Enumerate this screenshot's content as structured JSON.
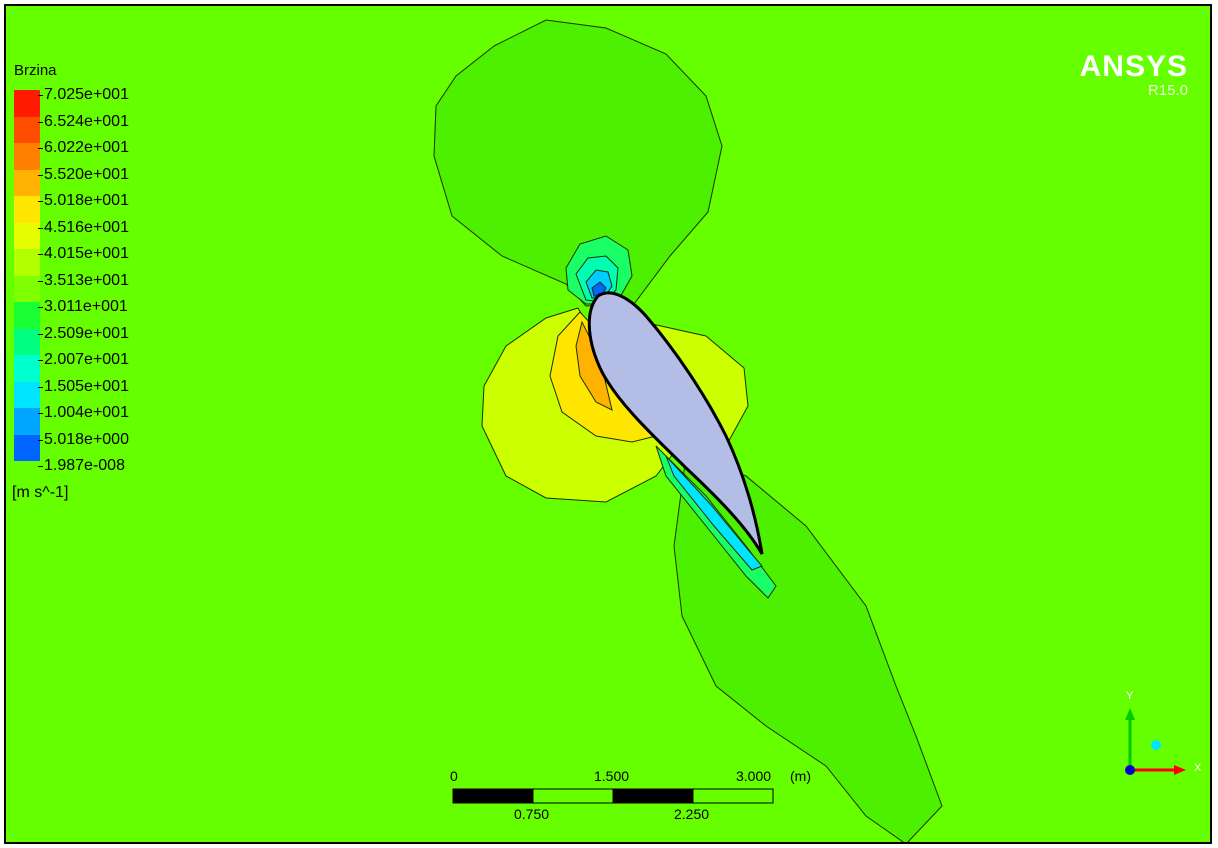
{
  "legend": {
    "title": "Brzina",
    "unit": "[m s^-1]",
    "labels": [
      "7.025e+001",
      "6.524e+001",
      "6.022e+001",
      "5.520e+001",
      "5.018e+001",
      "4.516e+001",
      "4.015e+001",
      "3.513e+001",
      "3.011e+001",
      "2.509e+001",
      "2.007e+001",
      "1.505e+001",
      "1.004e+001",
      "5.018e+000",
      "1.987e-008"
    ],
    "colors": [
      "#ff1a00",
      "#ff4d00",
      "#ff8000",
      "#ffb300",
      "#ffe600",
      "#e6ff00",
      "#b3ff00",
      "#80ff00",
      "#1aff33",
      "#00ff80",
      "#00ffcc",
      "#00e5ff",
      "#00a6ff",
      "#0066ff",
      "#0026ff"
    ]
  },
  "brand": {
    "name": "ANSYS",
    "version": "R15.0"
  },
  "scale_bar": {
    "top_labels": [
      "0",
      "1.500",
      "3.000"
    ],
    "unit": "(m)",
    "bottom_labels": [
      "0.750",
      "2.250"
    ]
  },
  "axes": {
    "x": "X",
    "y": "Y"
  },
  "colors": {
    "background": "#66ff00",
    "airfoil": "#b3bde6"
  }
}
